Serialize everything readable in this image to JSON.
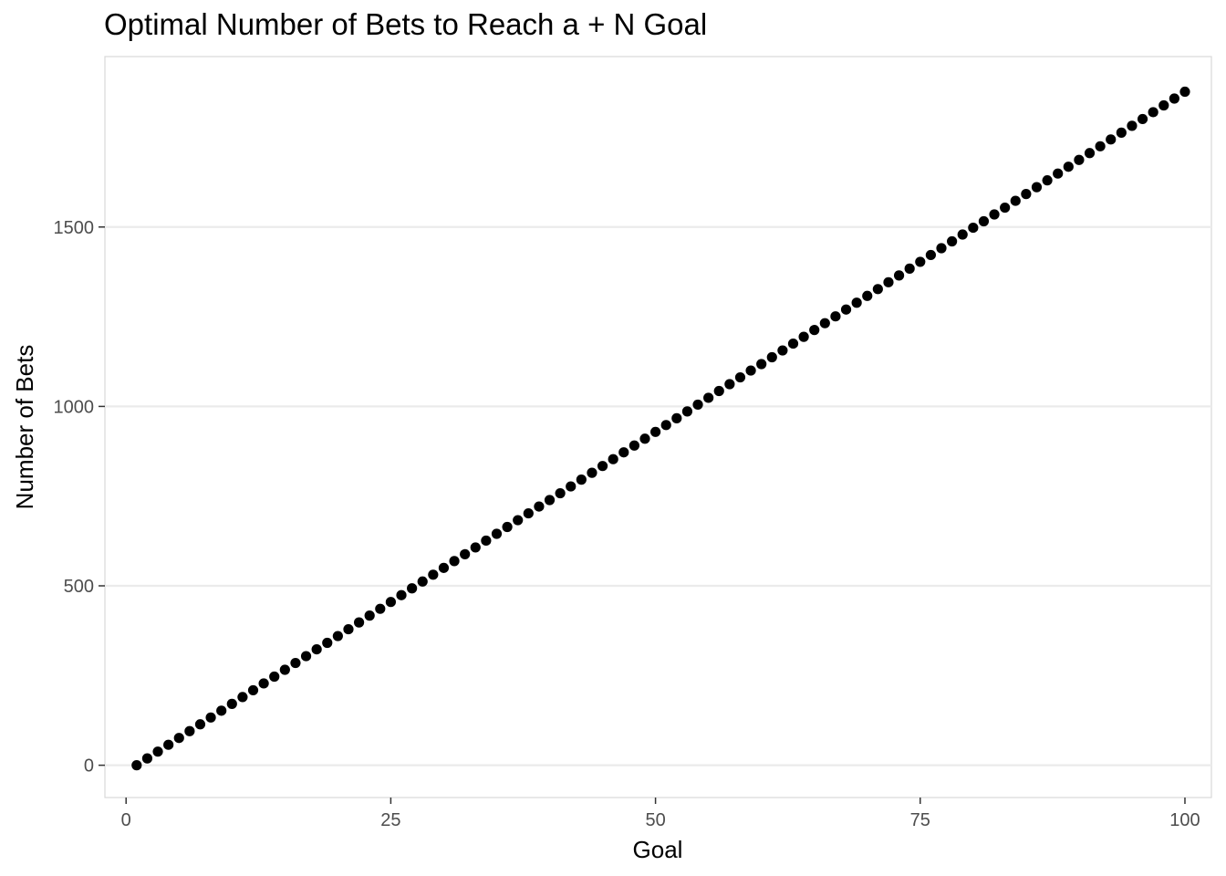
{
  "chart_data": {
    "type": "scatter",
    "title": "Optimal Number of Bets to Reach a + N Goal",
    "xlabel": "Goal",
    "ylabel": "Number of Bets",
    "xlim": [
      -2,
      102.5
    ],
    "ylim": [
      -90,
      1975
    ],
    "x_ticks": [
      0,
      25,
      50,
      75,
      100
    ],
    "x_tick_labels": [
      "0",
      "25",
      "50",
      "75",
      "100"
    ],
    "y_ticks": [
      0,
      500,
      1000,
      1500
    ],
    "y_tick_labels": [
      "0",
      "500",
      "1000",
      "1500"
    ],
    "grid": "horizontal major gridlines",
    "legend": "none",
    "point_color": "#000000",
    "gridline_color": "#ebebeb",
    "panel_border_color": "#d9d9d9",
    "series": [
      {
        "x": [
          1,
          2,
          3,
          4,
          5,
          6,
          7,
          8,
          9,
          10,
          11,
          12,
          13,
          14,
          15,
          16,
          17,
          18,
          19,
          20,
          21,
          22,
          23,
          24,
          25,
          26,
          27,
          28,
          29,
          30,
          31,
          32,
          33,
          34,
          35,
          36,
          37,
          38,
          39,
          40,
          41,
          42,
          43,
          44,
          45,
          46,
          47,
          48,
          49,
          50,
          51,
          52,
          53,
          54,
          55,
          56,
          57,
          58,
          59,
          60,
          61,
          62,
          63,
          64,
          65,
          66,
          67,
          68,
          69,
          70,
          71,
          72,
          73,
          74,
          75,
          76,
          77,
          78,
          79,
          80,
          81,
          82,
          83,
          84,
          85,
          86,
          87,
          88,
          89,
          90,
          91,
          92,
          93,
          94,
          95,
          96,
          97,
          98,
          99,
          100
        ],
        "y": [
          0,
          19,
          38,
          57,
          76,
          95,
          114,
          133,
          152,
          171,
          190,
          209,
          228,
          247,
          266,
          285,
          304,
          323,
          341,
          360,
          379,
          398,
          417,
          436,
          455,
          474,
          493,
          512,
          531,
          550,
          569,
          588,
          607,
          626,
          645,
          664,
          683,
          702,
          721,
          739,
          758,
          777,
          796,
          815,
          834,
          853,
          872,
          891,
          910,
          929,
          948,
          967,
          986,
          1005,
          1024,
          1043,
          1062,
          1081,
          1100,
          1118,
          1137,
          1156,
          1175,
          1194,
          1213,
          1232,
          1251,
          1270,
          1289,
          1308,
          1327,
          1346,
          1365,
          1384,
          1403,
          1422,
          1441,
          1460,
          1479,
          1498,
          1516,
          1535,
          1554,
          1573,
          1592,
          1611,
          1630,
          1649,
          1668,
          1687,
          1706,
          1725,
          1744,
          1763,
          1782,
          1801,
          1820,
          1839,
          1858,
          1877
        ]
      }
    ]
  }
}
